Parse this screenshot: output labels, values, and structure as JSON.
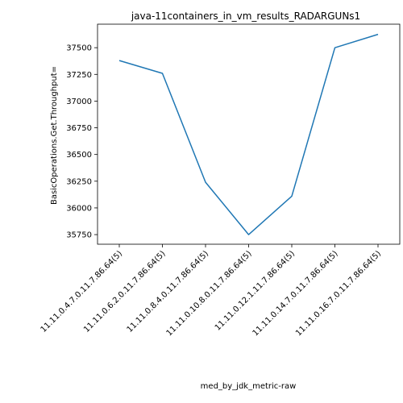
{
  "chart_data": {
    "type": "line",
    "title": "java-11containers_in_vm_results_RADARGUNs1",
    "xlabel": "med_by_jdk_metric-raw",
    "ylabel": "BasicOperations.Get.Throughput=",
    "categories": [
      "11.11.0.4.7.0.11.7.86.64(5)",
      "11.11.0.6.2.0.11.7.86.64(5)",
      "11.11.0.8.4.0.11.7.86.64(5)",
      "11.11.0.10.8.0.11.7.86.64(5)",
      "11.11.0.12.1.11.7.86.64(5)",
      "11.11.0.14.7.0.11.7.86.64(5)",
      "11.11.0.16.7.0.11.7.86.64(5)"
    ],
    "series": [
      {
        "values": [
          37380,
          37260,
          36240,
          35750,
          36110,
          37500,
          37625
        ]
      }
    ],
    "ylim": [
      35660,
      37720
    ],
    "yticks": [
      35750,
      36000,
      36250,
      36500,
      36750,
      37000,
      37250,
      37500
    ],
    "ytick_labels": [
      "35750",
      "36000",
      "36250",
      "36500",
      "36750",
      "37000",
      "37250",
      "37500"
    ],
    "line_color": "#1f77b4",
    "grid": false
  }
}
